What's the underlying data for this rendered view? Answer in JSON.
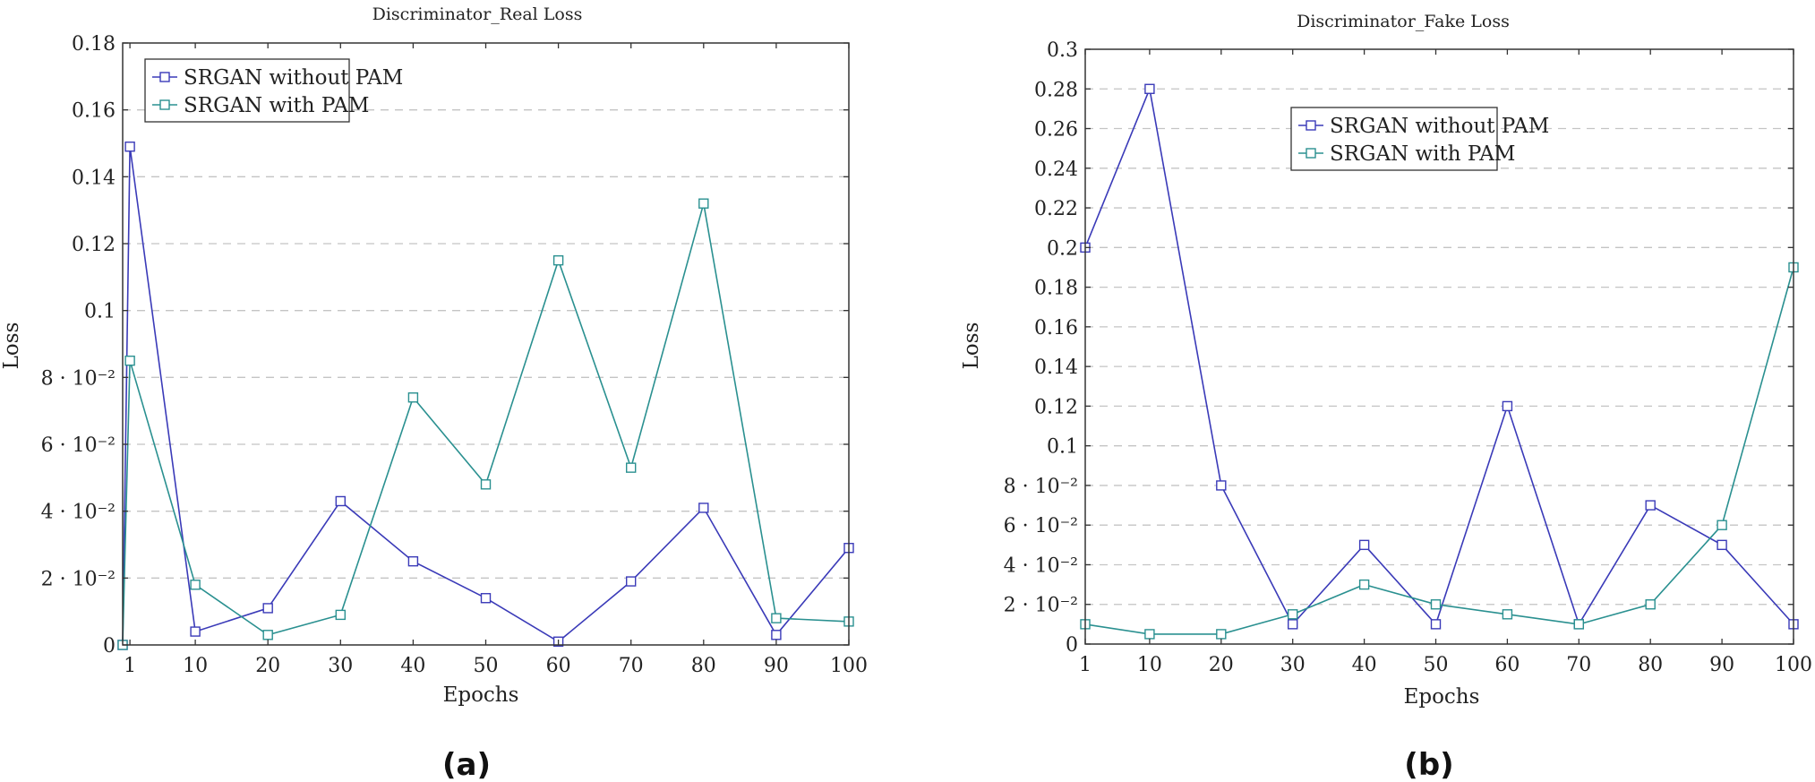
{
  "panel_labels": [
    "(a)",
    "(b)"
  ],
  "chart_data": [
    {
      "type": "line",
      "title": "Discriminator_Real Loss",
      "xlabel": "Epochs",
      "ylabel": "Loss",
      "x": [
        0,
        1,
        10,
        20,
        30,
        40,
        50,
        60,
        70,
        80,
        90,
        100
      ],
      "xticks": [
        1,
        10,
        20,
        30,
        40,
        50,
        60,
        70,
        80,
        90,
        100
      ],
      "xlim": [
        0,
        100
      ],
      "ylim": [
        0,
        0.18
      ],
      "yticks": [
        {
          "v": 0,
          "label": "0"
        },
        {
          "v": 0.02,
          "label": "2 · 10⁻²"
        },
        {
          "v": 0.04,
          "label": "4 · 10⁻²"
        },
        {
          "v": 0.06,
          "label": "6 · 10⁻²"
        },
        {
          "v": 0.08,
          "label": "8 · 10⁻²"
        },
        {
          "v": 0.1,
          "label": "0.1"
        },
        {
          "v": 0.12,
          "label": "0.12"
        },
        {
          "v": 0.14,
          "label": "0.14"
        },
        {
          "v": 0.16,
          "label": "0.16"
        },
        {
          "v": 0.18,
          "label": "0.18"
        }
      ],
      "grid": true,
      "legend_position": "top-left",
      "series": [
        {
          "name": "SRGAN without PAM",
          "color": "#3a3ab8",
          "values": [
            0,
            0.149,
            0.004,
            0.011,
            0.043,
            0.025,
            0.014,
            0.001,
            0.019,
            0.041,
            0.003,
            0.029
          ]
        },
        {
          "name": "SRGAN with PAM",
          "color": "#2a9090",
          "values": [
            0,
            0.085,
            0.018,
            0.003,
            0.009,
            0.074,
            0.048,
            0.115,
            0.053,
            0.132,
            0.008,
            0.007
          ]
        }
      ]
    },
    {
      "type": "line",
      "title": "Discriminator_Fake Loss",
      "xlabel": "Epochs",
      "ylabel": "Loss",
      "x": [
        1,
        10,
        20,
        30,
        40,
        50,
        60,
        70,
        80,
        90,
        100
      ],
      "xticks": [
        1,
        10,
        20,
        30,
        40,
        50,
        60,
        70,
        80,
        90,
        100
      ],
      "xlim": [
        1,
        100
      ],
      "ylim": [
        0,
        0.3
      ],
      "yticks": [
        {
          "v": 0,
          "label": "0"
        },
        {
          "v": 0.02,
          "label": "2 · 10⁻²"
        },
        {
          "v": 0.04,
          "label": "4 · 10⁻²"
        },
        {
          "v": 0.06,
          "label": "6 · 10⁻²"
        },
        {
          "v": 0.08,
          "label": "8 · 10⁻²"
        },
        {
          "v": 0.1,
          "label": "0.1"
        },
        {
          "v": 0.12,
          "label": "0.12"
        },
        {
          "v": 0.14,
          "label": "0.14"
        },
        {
          "v": 0.16,
          "label": "0.16"
        },
        {
          "v": 0.18,
          "label": "0.18"
        },
        {
          "v": 0.2,
          "label": "0.2"
        },
        {
          "v": 0.22,
          "label": "0.22"
        },
        {
          "v": 0.24,
          "label": "0.24"
        },
        {
          "v": 0.26,
          "label": "0.26"
        },
        {
          "v": 0.28,
          "label": "0.28"
        },
        {
          "v": 0.3,
          "label": "0.3"
        }
      ],
      "grid": true,
      "legend_position": "upper-middle",
      "series": [
        {
          "name": "SRGAN without PAM",
          "color": "#3a3ab8",
          "values": [
            0.2,
            0.28,
            0.08,
            0.01,
            0.05,
            0.01,
            0.12,
            0.01,
            0.07,
            0.05,
            0.01
          ]
        },
        {
          "name": "SRGAN with PAM",
          "color": "#2a9090",
          "values": [
            0.01,
            0.005,
            0.005,
            0.015,
            0.03,
            0.02,
            0.015,
            0.01,
            0.02,
            0.06,
            0.19
          ]
        }
      ]
    }
  ]
}
